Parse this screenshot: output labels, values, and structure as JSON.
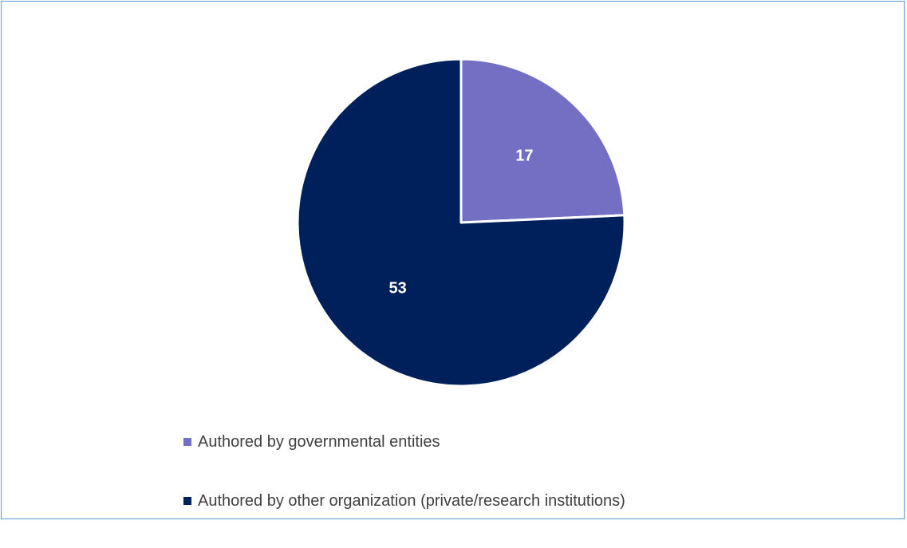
{
  "chart_data": {
    "type": "pie",
    "title": "",
    "start_angle_deg": 0,
    "direction": "clockwise",
    "slices": [
      {
        "label": "Authored by governmental entities",
        "value": 17,
        "color": "#7370c3",
        "data_label": "17"
      },
      {
        "label": "Authored by other organization (private/research institutions)",
        "value": 53,
        "color": "#00205b",
        "data_label": "53"
      }
    ],
    "legend_position": "bottom-left",
    "data_label_color": "#ffffff",
    "slice_border_color": "#ffffff"
  }
}
